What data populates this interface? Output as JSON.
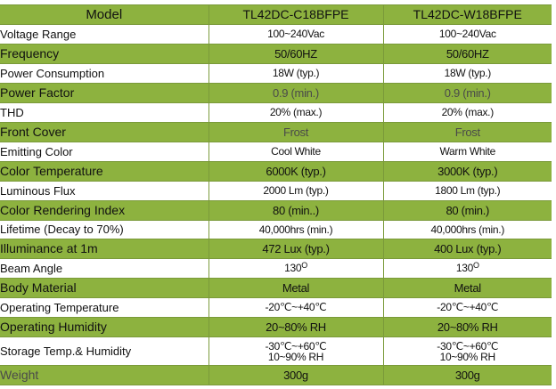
{
  "header": {
    "label": "Model",
    "model_1": "TL42DC-C18BFPE",
    "model_2": "TL42DC-W18BFPE"
  },
  "rows": [
    {
      "label": "Voltage Range",
      "v1": "100~240Vac",
      "v2": "100~240Vac"
    },
    {
      "label": "Frequency",
      "v1": "50/60HZ",
      "v2": "50/60HZ"
    },
    {
      "label": "Power Consumption",
      "v1": "18W (typ.)",
      "v2": "18W (typ.)"
    },
    {
      "label": "Power Factor",
      "v1": "0.9 (min.)",
      "v2": "0.9 (min.)"
    },
    {
      "label": "THD",
      "v1": "20% (max.)",
      "v2": "20% (max.)"
    },
    {
      "label": "Front Cover",
      "v1": "Frost",
      "v2": "Frost"
    },
    {
      "label": "Emitting Color",
      "v1": "Cool White",
      "v2": "Warm White"
    },
    {
      "label": "Color Temperature",
      "v1": "6000K (typ.)",
      "v2": "3000K (typ.)"
    },
    {
      "label": "Luminous Flux",
      "v1": "2000 Lm (typ.)",
      "v2": "1800 Lm (typ.)"
    },
    {
      "label": "Color Rendering Index",
      "v1": "80 (min..)",
      "v2": "80 (min.)"
    },
    {
      "label": "Lifetime  (Decay to 70%)",
      "v1": "40,000hrs (min.)",
      "v2": "40,000hrs (min.)"
    },
    {
      "label": "Illuminance at 1m",
      "v1": "472 Lux (typ.)",
      "v2": "400 Lux (typ.)"
    },
    {
      "label": "Beam Angle",
      "v1": "130",
      "v1_sup": "O",
      "v2": "130",
      "v2_sup": "O"
    },
    {
      "label": "Body Material",
      "v1": "Metal",
      "v2": "Metal"
    },
    {
      "label": "Operating Temperature",
      "v1": "-20℃~+40℃",
      "v2": "-20℃~+40℃"
    },
    {
      "label": "Operating Humidity",
      "v1": "20~80% RH",
      "v2": "20~80% RH"
    },
    {
      "label": "Storage Temp.& Humidity",
      "v1_line1": "-30℃~+60℃",
      "v1_line2": "10~90% RH",
      "v2_line1": "-30℃~+60℃",
      "v2_line2": "10~90% RH"
    },
    {
      "label": "Weight",
      "v1": "300g",
      "v2": "300g"
    }
  ]
}
